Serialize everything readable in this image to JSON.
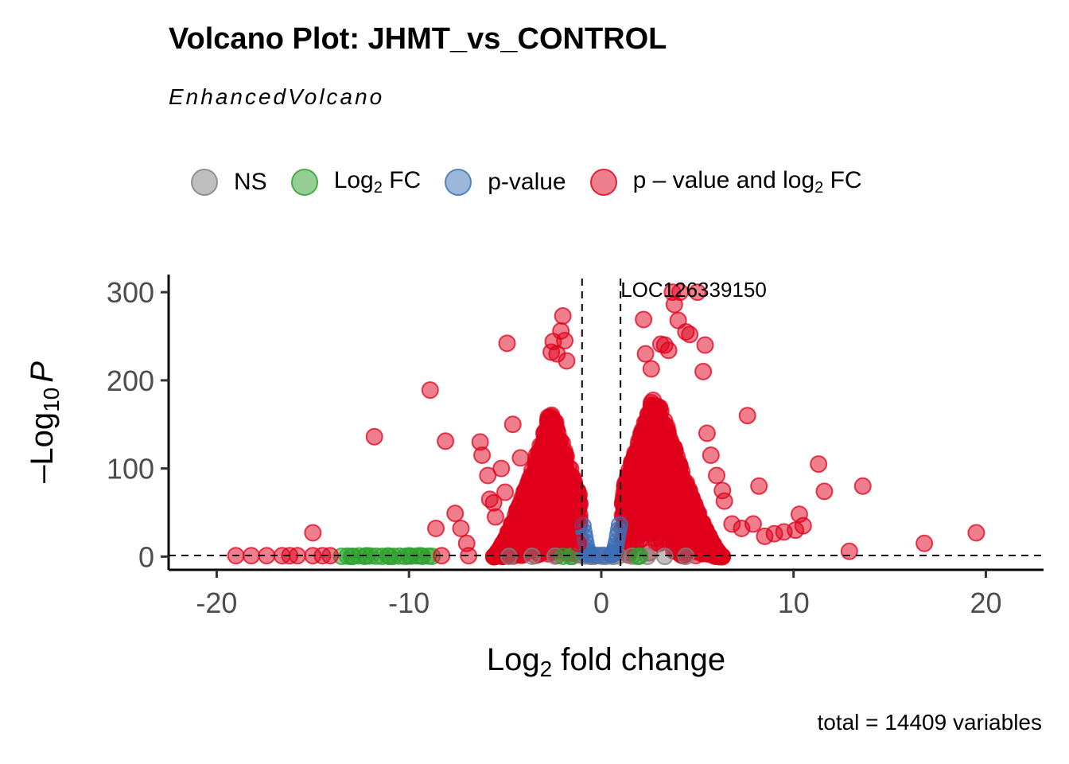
{
  "title": "Volcano Plot: JHMT_vs_CONTROL",
  "subtitle": "EnhancedVolcano",
  "caption": "total = 14409 variables",
  "legend": [
    {
      "key": "NS",
      "label": "NS",
      "color": "#808080"
    },
    {
      "key": "log2fc",
      "label": "Log",
      "sub": "2",
      "suffix": " FC",
      "color": "#2ca02c"
    },
    {
      "key": "pvalue",
      "label": "p-value",
      "color": "#3b6fb6"
    },
    {
      "key": "both",
      "label": "p – value and log",
      "sub": "2",
      "suffix": " FC",
      "color": "#e0001b"
    }
  ],
  "chart_data": {
    "type": "scatter",
    "title": "Volcano Plot: JHMT_vs_CONTROL",
    "subtitle": "EnhancedVolcano",
    "xlabel": "Log2 fold change",
    "ylabel": "-Log10 P",
    "xlabel_parts": {
      "base": "Log",
      "sub": "2",
      "rest": " fold change"
    },
    "ylabel_parts": {
      "minus": "–",
      "base": "Log",
      "sub": "10",
      "var": "P"
    },
    "xlim": [
      -22.5,
      23
    ],
    "ylim": [
      -15,
      320
    ],
    "x_ticks": [
      -20,
      -10,
      0,
      10,
      20
    ],
    "y_ticks": [
      0,
      100,
      200,
      300
    ],
    "fc_cutoff": [
      -1,
      1
    ],
    "p_cutoff": 1.3,
    "annotations": [
      {
        "label": "LOC126339150",
        "x": 4.8,
        "y": 300
      }
    ],
    "clusters": [
      {
        "category": "both",
        "x_range": [
          -5.6,
          -1.1
        ],
        "y_range": [
          0,
          170
        ],
        "count": 900,
        "peak": -2.6
      },
      {
        "category": "both",
        "x_range": [
          1.1,
          6.3
        ],
        "y_range": [
          0,
          190
        ],
        "count": 1000,
        "peak": 2.8
      }
    ],
    "series": [
      {
        "name": "NS",
        "color": "#808080",
        "points": [
          [
            -0.9,
            0.6
          ],
          [
            -0.6,
            0.3
          ],
          [
            -0.3,
            0.9
          ],
          [
            0.0,
            0.5
          ],
          [
            0.3,
            0.8
          ],
          [
            0.6,
            0.2
          ],
          [
            0.9,
            0.7
          ],
          [
            -0.4,
            0.1
          ],
          [
            0.2,
            0.1
          ],
          [
            -1.5,
            0.2
          ],
          [
            1.6,
            0.5
          ],
          [
            2.4,
            0.3
          ],
          [
            -2.4,
            0.6
          ],
          [
            3.3,
            0.2
          ],
          [
            -3.6,
            0.4
          ],
          [
            4.4,
            0.3
          ],
          [
            -4.8,
            0.2
          ]
        ]
      },
      {
        "name": "Log2 FC",
        "color": "#2ca02c",
        "points": [
          [
            -13.5,
            0.3
          ],
          [
            -13.2,
            0.6
          ],
          [
            -12.9,
            0.4
          ],
          [
            -12.6,
            0.8
          ],
          [
            -12.3,
            0.2
          ],
          [
            -12.0,
            0.7
          ],
          [
            -11.7,
            0.5
          ],
          [
            -11.4,
            0.3
          ],
          [
            -11.1,
            0.8
          ],
          [
            -10.8,
            0.4
          ],
          [
            -10.5,
            0.6
          ],
          [
            -10.2,
            0.2
          ],
          [
            -9.9,
            0.5
          ],
          [
            -9.6,
            0.7
          ],
          [
            -9.3,
            0.3
          ],
          [
            -9.0,
            0.6
          ],
          [
            -8.8,
            0.4
          ],
          [
            -13.0,
            0.1
          ],
          [
            -11.0,
            0.1
          ],
          [
            -10.0,
            0.9
          ],
          [
            -12.2,
            1.0
          ],
          [
            -9.4,
            1.0
          ],
          [
            2.0,
            0.6
          ],
          [
            1.9,
            0.2
          ],
          [
            -2.0,
            0.4
          ],
          [
            -1.6,
            0.2
          ]
        ]
      },
      {
        "name": "p-value",
        "color": "#3b6fb6",
        "points": [
          [
            -0.9,
            28
          ],
          [
            -0.85,
            22
          ],
          [
            -0.8,
            16
          ],
          [
            -0.75,
            10
          ],
          [
            -0.7,
            6
          ],
          [
            -0.95,
            35
          ],
          [
            -0.65,
            4
          ],
          [
            -0.6,
            3
          ],
          [
            -0.8,
            2.5
          ],
          [
            0.9,
            30
          ],
          [
            0.85,
            24
          ],
          [
            0.8,
            17
          ],
          [
            0.75,
            12
          ],
          [
            0.7,
            8
          ],
          [
            0.65,
            5
          ],
          [
            0.6,
            3
          ],
          [
            0.95,
            36
          ],
          [
            0.55,
            2.5
          ],
          [
            -0.5,
            2
          ],
          [
            0.5,
            2
          ],
          [
            -0.2,
            1.5
          ],
          [
            0.1,
            1.6
          ]
        ]
      },
      {
        "name": "p - value and log2 FC",
        "color": "#e0001b",
        "points": [
          [
            -19.0,
            1
          ],
          [
            -18.2,
            1
          ],
          [
            -17.4,
            1
          ],
          [
            -16.6,
            1
          ],
          [
            -16.2,
            1
          ],
          [
            -15.8,
            1
          ],
          [
            -15.0,
            1
          ],
          [
            -14.5,
            1
          ],
          [
            -14.1,
            1
          ],
          [
            -15.0,
            27
          ],
          [
            -11.8,
            136
          ],
          [
            -8.9,
            189
          ],
          [
            -8.6,
            32
          ],
          [
            -8.3,
            1
          ],
          [
            -8.1,
            131
          ],
          [
            -7.6,
            49
          ],
          [
            -7.3,
            32
          ],
          [
            -7.0,
            15
          ],
          [
            -6.9,
            1
          ],
          [
            -6.3,
            130
          ],
          [
            -6.2,
            115
          ],
          [
            -5.9,
            92
          ],
          [
            -5.8,
            65
          ],
          [
            -5.6,
            61
          ],
          [
            -5.5,
            45
          ],
          [
            -5.2,
            100
          ],
          [
            -5.0,
            73
          ],
          [
            -4.9,
            242
          ],
          [
            -4.6,
            150
          ],
          [
            -4.2,
            112
          ],
          [
            -3.8,
            79
          ],
          [
            -2.6,
            232
          ],
          [
            -2.5,
            244
          ],
          [
            -2.3,
            230
          ],
          [
            -2.1,
            256
          ],
          [
            -2.0,
            273
          ],
          [
            -1.9,
            245
          ],
          [
            -1.8,
            222
          ],
          [
            -1.3,
            40
          ],
          [
            -1.2,
            15
          ],
          [
            2.2,
            269
          ],
          [
            2.3,
            230
          ],
          [
            2.6,
            213
          ],
          [
            3.1,
            241
          ],
          [
            3.3,
            240
          ],
          [
            3.5,
            234
          ],
          [
            3.7,
            300
          ],
          [
            3.8,
            286
          ],
          [
            4.0,
            268
          ],
          [
            4.1,
            300
          ],
          [
            4.4,
            255
          ],
          [
            4.6,
            252
          ],
          [
            5.0,
            300
          ],
          [
            5.3,
            210
          ],
          [
            5.4,
            240
          ],
          [
            5.5,
            140
          ],
          [
            5.7,
            115
          ],
          [
            6.0,
            92
          ],
          [
            6.3,
            75
          ],
          [
            6.4,
            63
          ],
          [
            6.8,
            37
          ],
          [
            7.3,
            32
          ],
          [
            7.6,
            160
          ],
          [
            7.9,
            37
          ],
          [
            8.2,
            80
          ],
          [
            8.5,
            23
          ],
          [
            9.0,
            26
          ],
          [
            9.5,
            28
          ],
          [
            10.1,
            30
          ],
          [
            10.3,
            48
          ],
          [
            10.5,
            35
          ],
          [
            11.3,
            105
          ],
          [
            11.6,
            74
          ],
          [
            12.9,
            6
          ],
          [
            13.6,
            80
          ],
          [
            16.8,
            15
          ],
          [
            19.5,
            27
          ]
        ]
      }
    ]
  }
}
